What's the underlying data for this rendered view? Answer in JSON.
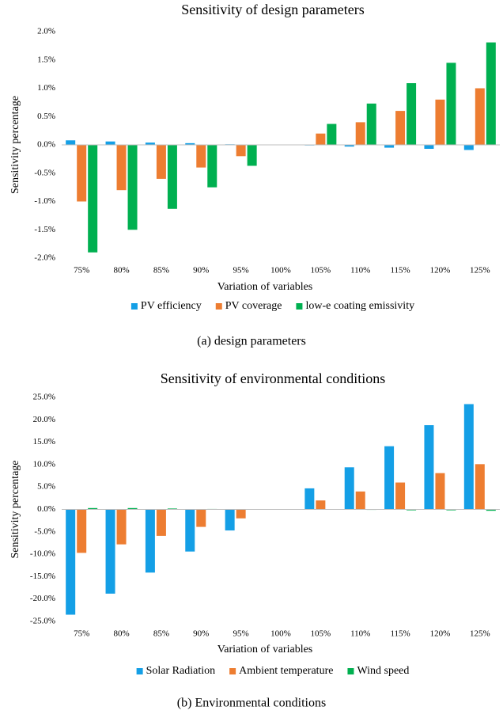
{
  "chart_data": [
    {
      "type": "bar",
      "title": "Sensitivity of design parameters",
      "x_label": "Variation of variables",
      "y_label": "Sensitivity percentage",
      "caption": "(a) design parameters",
      "categories": [
        "75%",
        "80%",
        "85%",
        "90%",
        "95%",
        "100%",
        "105%",
        "110%",
        "115%",
        "120%",
        "125%"
      ],
      "series": [
        {
          "name": "PV efficiency",
          "color": "#149fe6",
          "values": [
            0.08,
            0.06,
            0.04,
            0.03,
            0.01,
            0,
            -0.01,
            -0.03,
            -0.05,
            -0.07,
            -0.09
          ]
        },
        {
          "name": "PV coverage",
          "color": "#ed7d31",
          "values": [
            -1.0,
            -0.8,
            -0.6,
            -0.4,
            -0.2,
            0,
            0.2,
            0.4,
            0.6,
            0.8,
            1.0
          ]
        },
        {
          "name": "low-e coating emissivity",
          "color": "#00b050",
          "values": [
            -1.9,
            -1.5,
            -1.13,
            -0.75,
            -0.37,
            0,
            0.37,
            0.73,
            1.09,
            1.45,
            1.81
          ]
        }
      ],
      "ylim": [
        -2.0,
        2.0
      ],
      "yticks": [
        {
          "value": -2.0,
          "label": "-2.0%"
        },
        {
          "value": -1.5,
          "label": "-1.5%"
        },
        {
          "value": -1.0,
          "label": "-1.0%"
        },
        {
          "value": -0.5,
          "label": "-0.5%"
        },
        {
          "value": 0,
          "label": "0.0%"
        },
        {
          "value": 0.5,
          "label": "0.5%"
        },
        {
          "value": 1.0,
          "label": "1.0%"
        },
        {
          "value": 1.5,
          "label": "1.5%"
        },
        {
          "value": 2.0,
          "label": "2.0%"
        }
      ],
      "grid": false,
      "legend": "bottom"
    },
    {
      "type": "bar",
      "title": "Sensitivity of environmental conditions",
      "x_label": "Variation of variables",
      "y_label": "Sensitivity percentage",
      "caption": "(b) Environmental conditions",
      "categories": [
        "75%",
        "80%",
        "85%",
        "90%",
        "95%",
        "100%",
        "105%",
        "110%",
        "115%",
        "120%",
        "125%"
      ],
      "series": [
        {
          "name": "Solar Radiation",
          "color": "#149fe6",
          "values": [
            -23.5,
            -18.8,
            -14.1,
            -9.4,
            -4.7,
            0,
            4.7,
            9.4,
            14.1,
            18.8,
            23.5
          ]
        },
        {
          "name": "Ambient temperature",
          "color": "#ed7d31",
          "values": [
            -9.7,
            -7.8,
            -5.9,
            -3.9,
            -2.0,
            0,
            2.0,
            4.0,
            6.0,
            8.1,
            10.1
          ]
        },
        {
          "name": "Wind speed",
          "color": "#00b050",
          "values": [
            0.3,
            0.3,
            0.2,
            0.1,
            0.05,
            0,
            -0.05,
            -0.1,
            -0.2,
            -0.2,
            -0.3
          ]
        }
      ],
      "ylim": [
        -25.0,
        25.0
      ],
      "yticks": [
        {
          "value": -25.0,
          "label": "-25.0%"
        },
        {
          "value": -20.0,
          "label": "-20.0%"
        },
        {
          "value": -15.0,
          "label": "-15.0%"
        },
        {
          "value": -10.0,
          "label": "-10.0%"
        },
        {
          "value": -5.0,
          "label": "-5.0%"
        },
        {
          "value": 0,
          "label": "0.0%"
        },
        {
          "value": 5.0,
          "label": "5.0%"
        },
        {
          "value": 10.0,
          "label": "10.0%"
        },
        {
          "value": 15.0,
          "label": "15.0%"
        },
        {
          "value": 20.0,
          "label": "20.0%"
        },
        {
          "value": 25.0,
          "label": "25.0%"
        }
      ],
      "grid": false,
      "legend": "bottom"
    }
  ]
}
